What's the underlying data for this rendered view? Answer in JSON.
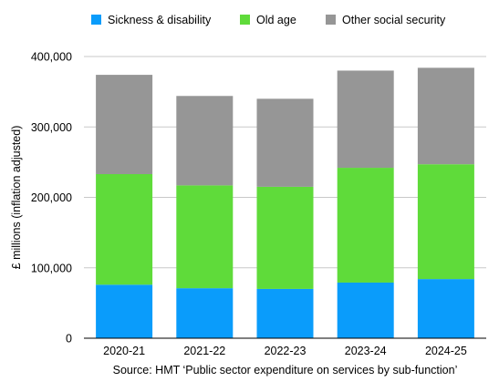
{
  "chart_data": {
    "type": "bar",
    "stacked": true,
    "categories": [
      "2020-21",
      "2021-22",
      "2022-23",
      "2023-24",
      "2024-25"
    ],
    "series": [
      {
        "name": "Sickness & disability",
        "color": "#0a9cfb",
        "values": [
          76000,
          71000,
          70000,
          79000,
          84000
        ]
      },
      {
        "name": "Old age",
        "color": "#5fdb3a",
        "values": [
          157000,
          146000,
          145000,
          163000,
          163000
        ]
      },
      {
        "name": "Other social security",
        "color": "#969696",
        "values": [
          141000,
          127000,
          125000,
          138000,
          137000
        ]
      }
    ],
    "ylabel": "£ millions (inflation adjusted)",
    "xlabel": "Source: HMT ‘Public sector expenditure on services by sub-function’",
    "ylim": [
      0,
      400000
    ],
    "yticks": [
      "0",
      "100,000",
      "200,000",
      "300,000",
      "400,000"
    ],
    "grid": true,
    "legend_position": "top"
  }
}
